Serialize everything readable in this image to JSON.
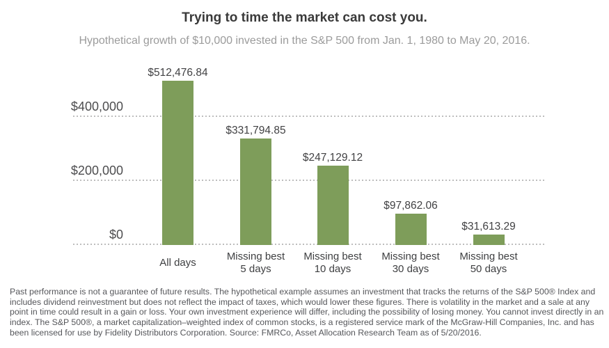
{
  "header": {
    "title": "Trying to time the market can cost you.",
    "subtitle": "Hypothetical growth of $10,000 invested in the S&P 500 from Jan. 1, 1980 to May 20, 2016."
  },
  "chart_data": {
    "type": "bar",
    "title": "Trying to time the market can cost you.",
    "subtitle": "Hypothetical growth of $10,000 invested in the S&P 500 from Jan. 1, 1980 to May 20, 2016.",
    "categories": [
      "All days",
      "Missing best 5 days",
      "Missing best 10 days",
      "Missing best 30 days",
      "Missing best 50 days"
    ],
    "category_lines": [
      [
        "All days"
      ],
      [
        "Missing best",
        "5 days"
      ],
      [
        "Missing best",
        "10 days"
      ],
      [
        "Missing best",
        "30 days"
      ],
      [
        "Missing best",
        "50 days"
      ]
    ],
    "values": [
      512476.84,
      331794.85,
      247129.12,
      97862.06,
      31613.29
    ],
    "value_labels": [
      "$512,476.84",
      "$331,794.85",
      "$247,129.12",
      "$97,862.06",
      "$31,613.29"
    ],
    "y_axis": {
      "tick_values": [
        0,
        200000,
        400000
      ],
      "tick_labels": [
        "$0",
        "$200,000",
        "$400,000"
      ],
      "range": [
        0,
        560000
      ]
    },
    "grid": {
      "style": "dotted",
      "orientation": "horizontal",
      "color": "#bdbdbd"
    },
    "legend": "none",
    "bar_color": "#7e9d5a",
    "xlabel": "",
    "ylabel": ""
  },
  "footnote": "Past performance is not a guarantee of future results. The hypothetical example assumes an investment that tracks the returns of the S&P 500® Index and includes dividend reinvestment but does not reflect the impact of taxes, which would lower these figures. There is volatility in the market and a sale at any point in time could result in a gain or loss. Your own investment experience will differ, including the possibility of losing money. You cannot invest directly in an index. The S&P 500®, a market capitalization–weighted index of common stocks, is a registered service mark of the McGraw-Hill Companies, Inc. and has been licensed for use by Fidelity Distributors Corporation. Source: FMRCo, Asset Allocation Research Team as of 5/20/2016.",
  "colors": {
    "bar": "#7e9d5a",
    "title_text": "#3a3a3a",
    "subtitle_text": "#9b9b9b",
    "axis_text": "#4d4d4f",
    "value_text": "#414143",
    "category_text": "#3e3f41",
    "gridline": "#bdbdbd",
    "footnote_text": "#55565a",
    "background": "#ffffff"
  }
}
